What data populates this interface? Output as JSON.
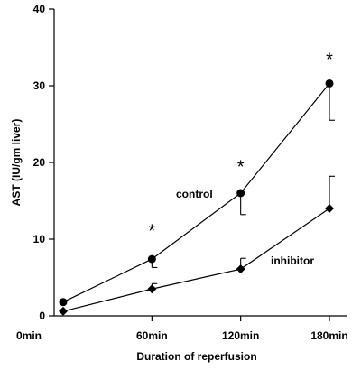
{
  "chart_data": {
    "type": "line",
    "xlabel": "Duration of reperfusion",
    "ylabel": "AST (IU/gm liver)",
    "categories": [
      "0min",
      "60min",
      "120min",
      "180min"
    ],
    "x_ticks": [
      0,
      60,
      120,
      180
    ],
    "ylim": [
      0,
      40
    ],
    "y_ticks": [
      0,
      10,
      20,
      30,
      40
    ],
    "grid": false,
    "series": [
      {
        "name": "control",
        "marker": "circle",
        "x": [
          0,
          60,
          120,
          180
        ],
        "values": [
          1.8,
          7.4,
          16.0,
          30.3
        ],
        "error_low": [
          null,
          6.3,
          13.2,
          25.5
        ],
        "error_high": [
          null,
          null,
          null,
          null
        ]
      },
      {
        "name": "inhibitor",
        "marker": "diamond",
        "x": [
          0,
          60,
          120,
          180
        ],
        "values": [
          0.6,
          3.5,
          6.1,
          14.0
        ],
        "error_low": [
          null,
          null,
          null,
          null
        ],
        "error_high": [
          null,
          4.2,
          7.5,
          18.2
        ]
      }
    ],
    "annotations": [
      {
        "text": "*",
        "x": 60,
        "y": 11.5
      },
      {
        "text": "*",
        "x": 120,
        "y": 19.8
      },
      {
        "text": "*",
        "x": 180,
        "y": 33.8
      }
    ]
  }
}
